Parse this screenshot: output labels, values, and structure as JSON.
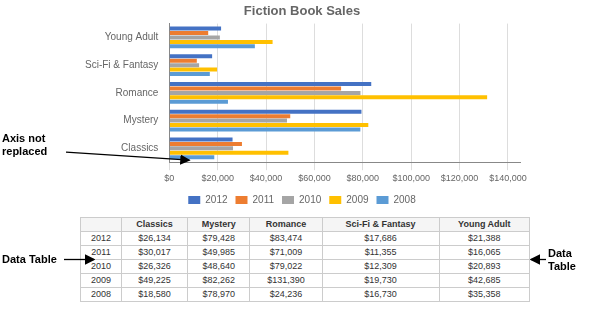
{
  "chart_data": {
    "type": "bar",
    "orientation": "horizontal",
    "title": "Fiction Book Sales",
    "categories": [
      "Classics",
      "Mystery",
      "Romance",
      "Sci-Fi & Fantasy",
      "Young Adult"
    ],
    "series": [
      {
        "name": "2012",
        "color": "#4472C4",
        "values": [
          26134,
          79428,
          83474,
          17686,
          21388
        ],
        "value_labels": [
          "$26,134",
          "$79,428",
          "$83,474",
          "$17,686",
          "$21,388"
        ]
      },
      {
        "name": "2011",
        "color": "#ED7D31",
        "values": [
          30017,
          49985,
          71009,
          11355,
          16065
        ],
        "value_labels": [
          "$30,017",
          "$49,985",
          "$71,009",
          "$11,355",
          "$16,065"
        ]
      },
      {
        "name": "2010",
        "color": "#A5A5A5",
        "values": [
          26326,
          48640,
          79022,
          12309,
          20893
        ],
        "value_labels": [
          "$26,326",
          "$48,640",
          "$79,022",
          "$12,309",
          "$20,893"
        ]
      },
      {
        "name": "2009",
        "color": "#FFC000",
        "values": [
          49225,
          82262,
          131390,
          19730,
          42685
        ],
        "value_labels": [
          "$49,225",
          "$82,262",
          "$131,390",
          "$19,730",
          "$42,685"
        ]
      },
      {
        "name": "2008",
        "color": "#5B9BD5",
        "values": [
          18580,
          78970,
          24236,
          16730,
          35358
        ],
        "value_labels": [
          "$18,580",
          "$78,970",
          "$24,236",
          "$16,730",
          "$35,358"
        ]
      }
    ],
    "xlim": [
      0,
      145000
    ],
    "xticks": [
      {
        "value": 0,
        "label": "$0"
      },
      {
        "value": 20000,
        "label": "$20,000"
      },
      {
        "value": 40000,
        "label": "$40,000"
      },
      {
        "value": 60000,
        "label": "$60,000"
      },
      {
        "value": 80000,
        "label": "$80,000"
      },
      {
        "value": 100000,
        "label": "$100,000"
      },
      {
        "value": 120000,
        "label": "$120,000"
      },
      {
        "value": 140000,
        "label": "$140,000"
      }
    ],
    "grid": true,
    "legend": "bottom",
    "annotations": [
      "Axis not replaced",
      "Data Table",
      "Data Table"
    ]
  }
}
